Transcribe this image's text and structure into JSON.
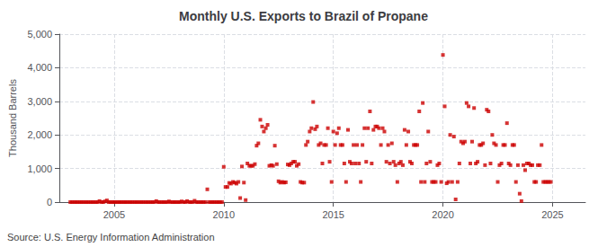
{
  "chart_data": {
    "type": "scatter",
    "title": "Monthly U.S. Exports to Brazil of Propane",
    "ylabel": "Thousand Barrels",
    "source": "Source: U.S. Energy Information Administration",
    "color": "#cc0000",
    "marker": "square",
    "grid": true,
    "xlim": [
      2002.5,
      2026.5
    ],
    "xticks": [
      2005,
      2010,
      2015,
      2020,
      2025
    ],
    "ylim": [
      0,
      5000
    ],
    "yticks": [
      0,
      {
        "value": 1000,
        "label": "1,000"
      },
      {
        "value": 2000,
        "label": "2,000"
      },
      {
        "value": 3000,
        "label": "3,000"
      },
      {
        "value": 4000,
        "label": "4,000"
      },
      {
        "value": 5000,
        "label": "5,000"
      }
    ],
    "x": [
      2003.0,
      2003.08,
      2003.17,
      2003.25,
      2003.33,
      2003.42,
      2003.5,
      2003.58,
      2003.67,
      2003.75,
      2003.83,
      2003.92,
      2004.0,
      2004.08,
      2004.17,
      2004.25,
      2004.33,
      2004.42,
      2004.5,
      2004.58,
      2004.67,
      2004.75,
      2004.83,
      2004.92,
      2005.0,
      2005.08,
      2005.17,
      2005.25,
      2005.33,
      2005.42,
      2005.5,
      2005.58,
      2005.67,
      2005.75,
      2005.83,
      2005.92,
      2006.0,
      2006.08,
      2006.17,
      2006.25,
      2006.33,
      2006.42,
      2006.5,
      2006.58,
      2006.67,
      2006.75,
      2006.83,
      2006.92,
      2007.0,
      2007.08,
      2007.17,
      2007.25,
      2007.33,
      2007.42,
      2007.5,
      2007.58,
      2007.67,
      2007.75,
      2007.83,
      2007.92,
      2008.0,
      2008.08,
      2008.17,
      2008.25,
      2008.33,
      2008.42,
      2008.5,
      2008.58,
      2008.67,
      2008.75,
      2008.83,
      2008.92,
      2009.0,
      2009.08,
      2009.17,
      2009.25,
      2009.33,
      2009.42,
      2009.5,
      2009.58,
      2009.67,
      2009.75,
      2009.83,
      2009.92,
      2010.0,
      2010.08,
      2010.17,
      2010.25,
      2010.33,
      2010.42,
      2010.5,
      2010.58,
      2010.67,
      2010.75,
      2010.83,
      2010.92,
      2011.0,
      2011.08,
      2011.17,
      2011.25,
      2011.33,
      2011.42,
      2011.5,
      2011.58,
      2011.67,
      2011.75,
      2011.83,
      2011.92,
      2012.0,
      2012.08,
      2012.17,
      2012.25,
      2012.33,
      2012.42,
      2012.5,
      2012.58,
      2012.67,
      2012.75,
      2012.83,
      2012.92,
      2013.0,
      2013.08,
      2013.17,
      2013.25,
      2013.33,
      2013.42,
      2013.5,
      2013.58,
      2013.67,
      2013.75,
      2013.83,
      2013.92,
      2014.0,
      2014.08,
      2014.17,
      2014.25,
      2014.33,
      2014.42,
      2014.5,
      2014.58,
      2014.67,
      2014.75,
      2014.83,
      2014.92,
      2015.0,
      2015.08,
      2015.17,
      2015.25,
      2015.33,
      2015.42,
      2015.5,
      2015.58,
      2015.67,
      2015.75,
      2015.83,
      2015.92,
      2016.0,
      2016.08,
      2016.17,
      2016.25,
      2016.33,
      2016.42,
      2016.5,
      2016.58,
      2016.67,
      2016.75,
      2016.83,
      2016.92,
      2017.0,
      2017.08,
      2017.17,
      2017.25,
      2017.33,
      2017.42,
      2017.5,
      2017.58,
      2017.67,
      2017.75,
      2017.83,
      2017.92,
      2018.0,
      2018.08,
      2018.17,
      2018.25,
      2018.33,
      2018.42,
      2018.5,
      2018.58,
      2018.67,
      2018.75,
      2018.83,
      2018.92,
      2019.0,
      2019.08,
      2019.17,
      2019.25,
      2019.33,
      2019.42,
      2019.5,
      2019.58,
      2019.67,
      2019.75,
      2019.83,
      2019.92,
      2020.0,
      2020.08,
      2020.17,
      2020.25,
      2020.33,
      2020.42,
      2020.5,
      2020.58,
      2020.67,
      2020.75,
      2020.83,
      2020.92,
      2021.0,
      2021.08,
      2021.17,
      2021.25,
      2021.33,
      2021.42,
      2021.5,
      2021.58,
      2021.67,
      2021.75,
      2021.83,
      2021.92,
      2022.0,
      2022.08,
      2022.17,
      2022.25,
      2022.33,
      2022.42,
      2022.5,
      2022.58,
      2022.67,
      2022.75,
      2022.83,
      2022.92,
      2023.0,
      2023.08,
      2023.17,
      2023.25,
      2023.33,
      2023.42,
      2023.5,
      2023.58,
      2023.67,
      2023.75,
      2023.83,
      2023.92,
      2024.0,
      2024.08,
      2024.17,
      2024.25,
      2024.33,
      2024.42,
      2024.5,
      2024.58,
      2024.67,
      2024.75,
      2024.83,
      2024.92
    ],
    "values": [
      0,
      0,
      0,
      0,
      0,
      0,
      0,
      0,
      0,
      0,
      0,
      0,
      0,
      0,
      0,
      0,
      30,
      0,
      0,
      20,
      50,
      0,
      0,
      0,
      0,
      0,
      0,
      0,
      0,
      0,
      0,
      0,
      0,
      0,
      0,
      0,
      0,
      0,
      0,
      0,
      0,
      0,
      0,
      0,
      0,
      0,
      0,
      30,
      0,
      0,
      0,
      0,
      0,
      0,
      20,
      0,
      0,
      0,
      0,
      0,
      0,
      20,
      0,
      0,
      30,
      0,
      0,
      0,
      40,
      0,
      0,
      0,
      0,
      0,
      0,
      380,
      0,
      0,
      0,
      0,
      0,
      0,
      0,
      0,
      1050,
      450,
      450,
      570,
      550,
      600,
      580,
      550,
      600,
      120,
      1060,
      580,
      60,
      1150,
      1080,
      1080,
      1080,
      1130,
      1680,
      1750,
      2450,
      2250,
      2100,
      2200,
      2300,
      1080,
      1100,
      1080,
      1680,
      1130,
      620,
      580,
      600,
      580,
      590,
      1120,
      1100,
      1150,
      1200,
      1200,
      1080,
      1130,
      600,
      580,
      580,
      1700,
      1800,
      2100,
      2200,
      2980,
      2170,
      2250,
      1700,
      1750,
      1150,
      1700,
      1700,
      2200,
      1200,
      600,
      2100,
      1700,
      2050,
      2200,
      1700,
      1700,
      1150,
      600,
      2150,
      1200,
      1150,
      1700,
      1150,
      1700,
      1150,
      600,
      1700,
      2200,
      1200,
      2200,
      2700,
      1150,
      2150,
      2250,
      2250,
      2200,
      1700,
      2200,
      2100,
      1200,
      1700,
      1150,
      1750,
      1200,
      1100,
      600,
      1150,
      1200,
      1100,
      2150,
      1700,
      2100,
      1200,
      1150,
      1700,
      1700,
      1700,
      2700,
      600,
      2950,
      600,
      1150,
      2100,
      1200,
      600,
      600,
      600,
      1100,
      1150,
      600,
      4380,
      2850,
      560,
      600,
      2000,
      600,
      1950,
      80,
      600,
      1150,
      1800,
      1750,
      1800,
      2950,
      2850,
      1150,
      1800,
      2800,
      1150,
      1200,
      1700,
      1700,
      1750,
      1100,
      2750,
      2700,
      1150,
      2000,
      1750,
      1700,
      600,
      1100,
      1150,
      1700,
      1700,
      2350,
      1150,
      1100,
      1700,
      1700,
      600,
      1100,
      250,
      30,
      1100,
      950,
      1150,
      1150,
      1100,
      1100,
      600,
      600,
      1100,
      1100,
      1700,
      600,
      600,
      600,
      600,
      600
    ]
  }
}
